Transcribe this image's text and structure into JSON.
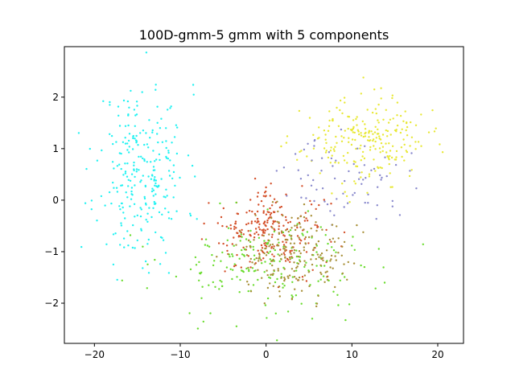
{
  "chart_data": {
    "type": "scatter",
    "title": "100D-gmm-5 gmm with 5 components",
    "xlabel": "",
    "ylabel": "",
    "xlim": [
      -23.5,
      23
    ],
    "ylim": [
      -2.78,
      2.98
    ],
    "xticks": [
      -20,
      -10,
      0,
      10,
      20
    ],
    "xtick_labels": [
      "−20",
      "−10",
      "0",
      "10",
      "20"
    ],
    "yticks": [
      -2,
      -1,
      0,
      1,
      2
    ],
    "ytick_labels": [
      "−2",
      "−1",
      "0",
      "1",
      "2"
    ],
    "grid": false,
    "legend": "none",
    "series": [
      {
        "color": "#22f2f2",
        "n": 260,
        "center": [
          -14.5,
          0.55
        ],
        "spread": [
          2.6,
          0.85
        ],
        "seed": 11
      },
      {
        "color": "#e8e836",
        "n": 230,
        "center": [
          11.5,
          1.15
        ],
        "spread": [
          3.6,
          0.4
        ],
        "seed": 23
      },
      {
        "color": "#8888cc",
        "n": 70,
        "center": [
          9.5,
          0.4
        ],
        "spread": [
          3.5,
          0.4
        ],
        "seed": 37
      },
      {
        "color": "#d4502a",
        "n": 230,
        "center": [
          0.5,
          -0.6
        ],
        "spread": [
          3.3,
          0.38
        ],
        "seed": 41
      },
      {
        "color": "#6adc2e",
        "n": 200,
        "center": [
          0.5,
          -1.3
        ],
        "spread": [
          6.5,
          0.5
        ],
        "seed": 53
      },
      {
        "color": "#a89038",
        "n": 200,
        "center": [
          3.0,
          -1.15
        ],
        "spread": [
          3.0,
          0.42
        ],
        "seed": 67
      }
    ]
  }
}
